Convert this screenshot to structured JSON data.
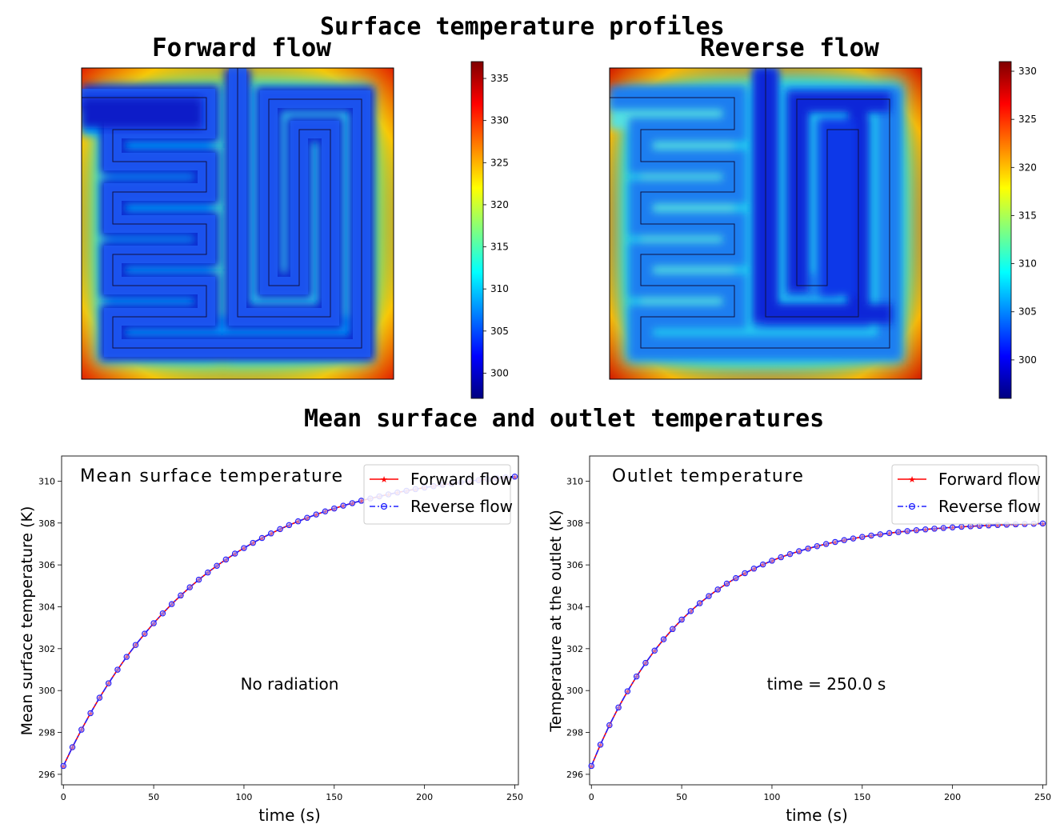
{
  "titles": {
    "main": "Surface temperature profiles",
    "left_map": "Forward flow",
    "right_map": "Reverse flow",
    "lower": "Mean surface and outlet temperatures"
  },
  "chart_data": [
    {
      "type": "heatmap",
      "title": "Forward flow",
      "colormap": "jet",
      "colorbar_range": [
        297,
        337
      ],
      "colorbar_ticks": [
        300,
        305,
        310,
        315,
        320,
        325,
        330,
        335
      ]
    },
    {
      "type": "heatmap",
      "title": "Reverse flow",
      "colormap": "jet",
      "colorbar_range": [
        296,
        331
      ],
      "colorbar_ticks": [
        300,
        305,
        310,
        315,
        320,
        325,
        330
      ]
    },
    {
      "type": "line",
      "title": "Mean surface temperature",
      "xlabel": "time (s)",
      "ylabel": "Mean surface temperature (K)",
      "annotation": "No radiation",
      "xlim": [
        -1,
        252
      ],
      "ylim": [
        295.5,
        311.2
      ],
      "xticks": [
        0,
        50,
        100,
        150,
        200,
        250
      ],
      "yticks": [
        296,
        298,
        300,
        302,
        304,
        306,
        308,
        310
      ],
      "legend_placement": "top-right",
      "series": [
        {
          "name": "Forward flow",
          "color": "#ff0000",
          "style": "solid",
          "marker": "star",
          "T_start": 296.4,
          "T_end": 310.8,
          "time_constant": 78,
          "t_end": 250,
          "step": 5
        },
        {
          "name": "Reverse flow",
          "color": "#2222ff",
          "style": "dash-dot",
          "marker": "circle",
          "T_start": 296.4,
          "T_end": 310.8,
          "time_constant": 78,
          "t_end": 250,
          "step": 5
        }
      ]
    },
    {
      "type": "line",
      "title": "Outlet temperature",
      "xlabel": "time (s)",
      "ylabel": "Temperature at the outlet (K)",
      "annotation": "time = 250.0 s",
      "xlim": [
        -1,
        252
      ],
      "ylim": [
        295.5,
        311.2
      ],
      "xticks": [
        0,
        50,
        100,
        150,
        200,
        250
      ],
      "yticks": [
        296,
        298,
        300,
        302,
        304,
        306,
        308,
        310
      ],
      "legend_placement": "top-right",
      "series": [
        {
          "name": "Forward flow",
          "color": "#ff0000",
          "style": "solid",
          "marker": "star",
          "T_start": 296.4,
          "T_end": 308.1,
          "time_constant": 55,
          "t_end": 250,
          "step": 5
        },
        {
          "name": "Reverse flow",
          "color": "#2222ff",
          "style": "dash-dot",
          "marker": "circle",
          "T_start": 296.4,
          "T_end": 308.1,
          "time_constant": 55,
          "t_end": 250,
          "step": 5
        }
      ]
    }
  ]
}
